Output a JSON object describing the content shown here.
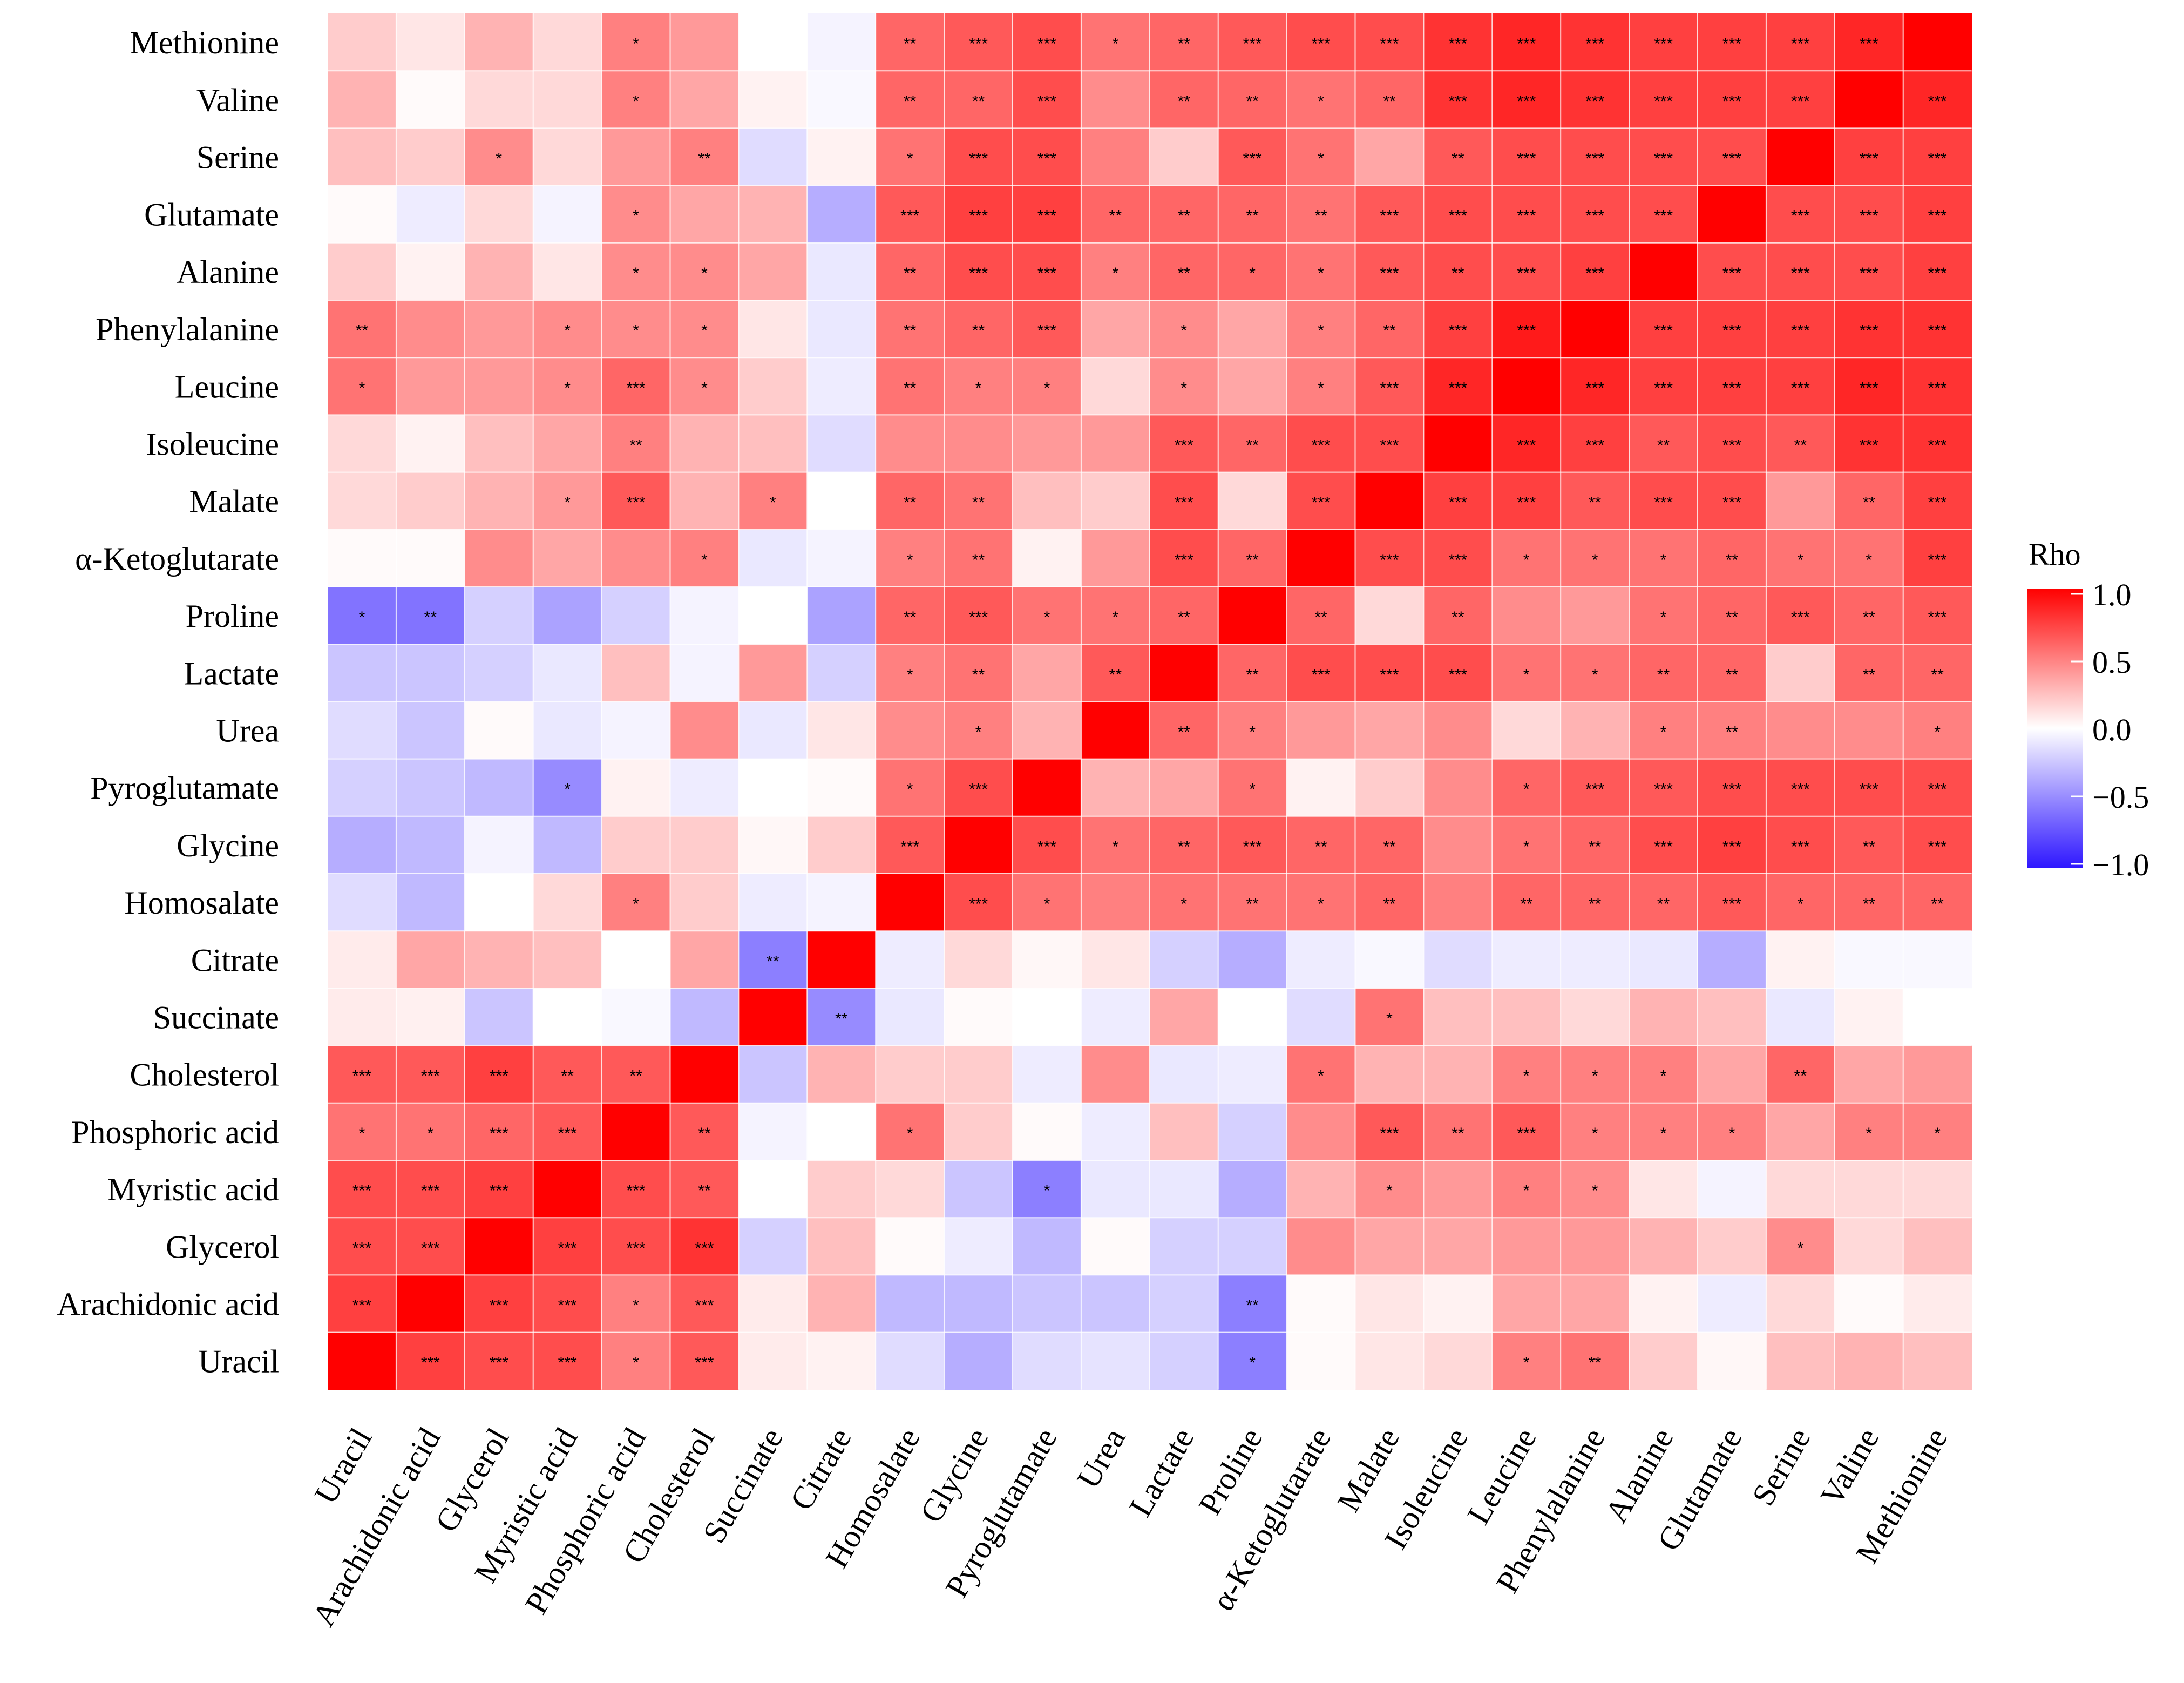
{
  "chart_data": {
    "type": "heatmap",
    "title": "",
    "xlabel": "",
    "ylabel": "",
    "columns": [
      "Uracil",
      "Arachidonic acid",
      "Glycerol",
      "Myristic acid",
      "Phosphoric acid",
      "Cholesterol",
      "Succinate",
      "Citrate",
      "Homosalate",
      "Glycine",
      "Pyroglutamate",
      "Urea",
      "Lactate",
      "Proline",
      "α-Ketoglutarate",
      "Malate",
      "Isoleucine",
      "Leucine",
      "Phenylalanine",
      "Alanine",
      "Glutamate",
      "Serine",
      "Valine",
      "Methionine"
    ],
    "rows": [
      "Methionine",
      "Valine",
      "Serine",
      "Glutamate",
      "Alanine",
      "Phenylalanine",
      "Leucine",
      "Isoleucine",
      "Malate",
      "α-Ketoglutarate",
      "Proline",
      "Lactate",
      "Urea",
      "Pyroglutamate",
      "Glycine",
      "Homosalate",
      "Citrate",
      "Succinate",
      "Cholesterol",
      "Phosphoric acid",
      "Myristic acid",
      "Glycerol",
      "Arachidonic acid",
      "Uracil"
    ],
    "values": [
      [
        0.2,
        0.1,
        0.3,
        0.15,
        0.5,
        0.4,
        0,
        -0.05,
        0.6,
        0.65,
        0.7,
        0.55,
        0.6,
        0.65,
        0.7,
        0.7,
        0.8,
        0.85,
        0.8,
        0.75,
        0.75,
        0.75,
        0.85,
        1.0
      ],
      [
        0.3,
        0.02,
        0.15,
        0.15,
        0.5,
        0.35,
        0.05,
        -0.03,
        0.6,
        0.6,
        0.7,
        0.45,
        0.6,
        0.6,
        0.55,
        0.6,
        0.8,
        0.85,
        0.8,
        0.75,
        0.75,
        0.75,
        1.0,
        0.85
      ],
      [
        0.25,
        0.2,
        0.45,
        0.15,
        0.4,
        0.5,
        -0.15,
        0.05,
        0.55,
        0.7,
        0.7,
        0.5,
        0.2,
        0.65,
        0.55,
        0.35,
        0.65,
        0.7,
        0.7,
        0.7,
        0.7,
        1.0,
        0.75,
        0.75
      ],
      [
        0.02,
        -0.08,
        0.15,
        -0.05,
        0.45,
        0.35,
        0.3,
        -0.35,
        0.65,
        0.75,
        0.75,
        0.6,
        0.6,
        0.6,
        0.55,
        0.65,
        0.7,
        0.7,
        0.7,
        0.7,
        1.0,
        0.7,
        0.7,
        0.75
      ],
      [
        0.2,
        0.05,
        0.3,
        0.1,
        0.45,
        0.45,
        0.35,
        -0.1,
        0.6,
        0.7,
        0.7,
        0.5,
        0.6,
        0.6,
        0.55,
        0.65,
        0.7,
        0.7,
        0.75,
        1.0,
        0.7,
        0.7,
        0.7,
        0.75
      ],
      [
        0.55,
        0.45,
        0.4,
        0.45,
        0.45,
        0.45,
        0.1,
        -0.1,
        0.55,
        0.6,
        0.65,
        0.35,
        0.45,
        0.35,
        0.5,
        0.6,
        0.75,
        0.9,
        1.0,
        0.75,
        0.75,
        0.75,
        0.8,
        0.8
      ],
      [
        0.55,
        0.4,
        0.4,
        0.45,
        0.6,
        0.45,
        0.2,
        -0.08,
        0.55,
        0.5,
        0.5,
        0.15,
        0.45,
        0.35,
        0.5,
        0.65,
        0.85,
        1.0,
        0.85,
        0.75,
        0.75,
        0.75,
        0.85,
        0.8
      ],
      [
        0.15,
        0.05,
        0.25,
        0.35,
        0.5,
        0.3,
        0.25,
        -0.15,
        0.45,
        0.45,
        0.4,
        0.4,
        0.65,
        0.6,
        0.7,
        0.7,
        1.0,
        0.85,
        0.75,
        0.65,
        0.7,
        0.65,
        0.8,
        0.8
      ],
      [
        0.15,
        0.2,
        0.3,
        0.4,
        0.65,
        0.3,
        0.5,
        0,
        0.6,
        0.55,
        0.25,
        0.2,
        0.7,
        0.15,
        0.7,
        1.0,
        0.75,
        0.75,
        0.65,
        0.7,
        0.7,
        0.4,
        0.6,
        0.75
      ],
      [
        0.02,
        0.02,
        0.45,
        0.35,
        0.45,
        0.5,
        -0.1,
        -0.05,
        0.5,
        0.55,
        0.05,
        0.4,
        0.7,
        0.6,
        1.0,
        0.7,
        0.7,
        0.55,
        0.55,
        0.55,
        0.6,
        0.55,
        0.55,
        0.75
      ],
      [
        -0.6,
        -0.6,
        -0.2,
        -0.4,
        -0.2,
        -0.05,
        0,
        -0.4,
        0.6,
        0.65,
        0.55,
        0.55,
        0.6,
        1.0,
        0.6,
        0.15,
        0.6,
        0.45,
        0.4,
        0.55,
        0.6,
        0.65,
        0.6,
        0.65
      ],
      [
        -0.25,
        -0.25,
        -0.2,
        -0.1,
        0.25,
        -0.05,
        0.4,
        -0.2,
        0.5,
        0.55,
        0.35,
        0.65,
        1.0,
        0.6,
        0.7,
        0.7,
        0.7,
        0.55,
        0.55,
        0.6,
        0.6,
        0.2,
        0.6,
        0.6
      ],
      [
        -0.15,
        -0.25,
        0.02,
        -0.1,
        -0.05,
        0.45,
        -0.1,
        0.1,
        0.45,
        0.5,
        0.3,
        1.0,
        0.6,
        0.5,
        0.4,
        0.35,
        0.45,
        0.15,
        0.3,
        0.5,
        0.5,
        0.45,
        0.45,
        0.5
      ],
      [
        -0.2,
        -0.25,
        -0.3,
        -0.5,
        0.05,
        -0.08,
        0,
        0.02,
        0.55,
        0.7,
        1.0,
        0.3,
        0.35,
        0.55,
        0.05,
        0.2,
        0.45,
        0.6,
        0.65,
        0.65,
        0.7,
        0.7,
        0.7,
        0.7
      ],
      [
        -0.35,
        -0.3,
        -0.05,
        -0.3,
        0.2,
        0.2,
        0.03,
        0.2,
        0.65,
        1.0,
        0.7,
        0.55,
        0.6,
        0.65,
        0.6,
        0.6,
        0.45,
        0.55,
        0.6,
        0.7,
        0.75,
        0.7,
        0.65,
        0.7
      ],
      [
        -0.15,
        -0.3,
        0,
        0.15,
        0.5,
        0.2,
        -0.08,
        -0.05,
        1.0,
        0.7,
        0.55,
        0.5,
        0.55,
        0.55,
        0.55,
        0.6,
        0.5,
        0.6,
        0.6,
        0.6,
        0.65,
        0.6,
        0.6,
        0.6
      ],
      [
        0.08,
        0.35,
        0.3,
        0.25,
        0,
        0.35,
        -0.55,
        1.0,
        -0.08,
        0.15,
        0.03,
        0.1,
        -0.2,
        -0.35,
        -0.08,
        -0.03,
        -0.15,
        -0.08,
        -0.08,
        -0.1,
        -0.35,
        0.05,
        -0.03,
        -0.03
      ],
      [
        0.08,
        0.06,
        -0.25,
        0,
        -0.03,
        -0.3,
        1.0,
        -0.5,
        -0.1,
        0.02,
        0,
        -0.08,
        0.35,
        0,
        -0.15,
        0.55,
        0.25,
        0.25,
        0.15,
        0.3,
        0.25,
        -0.1,
        0.05,
        0
      ],
      [
        0.65,
        0.65,
        0.75,
        0.65,
        0.65,
        1.0,
        -0.25,
        0.3,
        0.2,
        0.2,
        -0.08,
        0.45,
        -0.1,
        -0.08,
        0.55,
        0.3,
        0.3,
        0.5,
        0.5,
        0.5,
        0.35,
        0.6,
        0.35,
        0.4
      ],
      [
        0.55,
        0.55,
        0.6,
        0.65,
        1.0,
        0.65,
        -0.05,
        0,
        0.55,
        0.2,
        0.02,
        -0.08,
        0.25,
        -0.2,
        0.45,
        0.65,
        0.55,
        0.65,
        0.5,
        0.5,
        0.5,
        0.35,
        0.5,
        0.5
      ],
      [
        0.7,
        0.7,
        0.75,
        1.0,
        0.7,
        0.65,
        0,
        0.2,
        0.15,
        -0.25,
        -0.55,
        -0.1,
        -0.1,
        -0.35,
        0.3,
        0.45,
        0.4,
        0.5,
        0.45,
        0.1,
        -0.05,
        0.15,
        0.15,
        0.15
      ],
      [
        0.7,
        0.7,
        1.0,
        0.75,
        0.7,
        0.8,
        -0.2,
        0.25,
        0.02,
        -0.08,
        -0.3,
        0.02,
        -0.2,
        -0.2,
        0.45,
        0.35,
        0.35,
        0.4,
        0.4,
        0.3,
        0.2,
        0.45,
        0.15,
        0.25
      ],
      [
        0.75,
        1.0,
        0.75,
        0.7,
        0.5,
        0.65,
        0.08,
        0.3,
        -0.3,
        -0.3,
        -0.25,
        -0.25,
        -0.2,
        -0.55,
        0.02,
        0.1,
        0.05,
        0.35,
        0.35,
        0.05,
        -0.08,
        0.15,
        0.02,
        0.08
      ],
      [
        1.0,
        0.75,
        0.7,
        0.7,
        0.5,
        0.65,
        0.08,
        0.05,
        -0.15,
        -0.35,
        -0.15,
        -0.12,
        -0.2,
        -0.55,
        0.02,
        0.1,
        0.15,
        0.5,
        0.55,
        0.2,
        0.03,
        0.25,
        0.3,
        0.25
      ]
    ],
    "significance": [
      [
        "",
        "",
        "",
        "",
        "*",
        "",
        "",
        "",
        "**",
        "***",
        "***",
        "*",
        "**",
        "***",
        "***",
        "***",
        "***",
        "***",
        "***",
        "***",
        "***",
        "***",
        "***",
        ""
      ],
      [
        "",
        "",
        "",
        "",
        "*",
        "",
        "",
        "",
        "**",
        "**",
        "***",
        "",
        "**",
        "**",
        "*",
        "**",
        "***",
        "***",
        "***",
        "***",
        "***",
        "***",
        "",
        "***"
      ],
      [
        "",
        "",
        "*",
        "",
        "",
        "**",
        "",
        "",
        "*",
        "***",
        "***",
        "",
        "",
        "***",
        "*",
        "",
        "**",
        "***",
        "***",
        "***",
        "***",
        "",
        "***",
        "***"
      ],
      [
        "",
        "",
        "",
        "",
        "*",
        "",
        "",
        "",
        "***",
        "***",
        "***",
        "**",
        "**",
        "**",
        "**",
        "***",
        "***",
        "***",
        "***",
        "***",
        "",
        "***",
        "***",
        "***"
      ],
      [
        "",
        "",
        "",
        "",
        "*",
        "*",
        "",
        "",
        "**",
        "***",
        "***",
        "*",
        "**",
        "*",
        "*",
        "***",
        "**",
        "***",
        "***",
        "",
        "***",
        "***",
        "***",
        "***"
      ],
      [
        "**",
        "",
        "",
        "*",
        "*",
        "*",
        "",
        "",
        "**",
        "**",
        "***",
        "",
        "*",
        "",
        "*",
        "**",
        "***",
        "***",
        "",
        "***",
        "***",
        "***",
        "***",
        "***"
      ],
      [
        "*",
        "",
        "",
        "*",
        "***",
        "*",
        "",
        "",
        "**",
        "*",
        "*",
        "",
        "*",
        "",
        "*",
        "***",
        "***",
        "",
        "***",
        "***",
        "***",
        "***",
        "***",
        "***"
      ],
      [
        "",
        "",
        "",
        "",
        "**",
        "",
        "",
        "",
        "",
        "",
        "",
        "",
        "***",
        "**",
        "***",
        "***",
        "",
        "***",
        "***",
        "**",
        "***",
        "**",
        "***",
        "***"
      ],
      [
        "",
        "",
        "",
        "*",
        "***",
        "",
        "*",
        "",
        "**",
        "**",
        "",
        "",
        "***",
        "",
        "***",
        "",
        "***",
        "***",
        "**",
        "***",
        "***",
        "",
        "**",
        "***"
      ],
      [
        "",
        "",
        "",
        "",
        "",
        "*",
        "",
        "",
        "*",
        "**",
        "",
        "",
        "***",
        "**",
        "",
        "***",
        "***",
        "*",
        "*",
        "*",
        "**",
        "*",
        "*",
        "***"
      ],
      [
        "*",
        "**",
        "",
        "",
        "",
        "",
        "",
        "",
        "**",
        "***",
        "*",
        "*",
        "**",
        "",
        "**",
        "",
        "**",
        "",
        "",
        "*",
        "**",
        "***",
        "**",
        "***"
      ],
      [
        "",
        "",
        "",
        "",
        "",
        "",
        "",
        "",
        "*",
        "**",
        "",
        "**",
        "",
        "**",
        "***",
        "***",
        "***",
        "*",
        "*",
        "**",
        "**",
        "",
        "**",
        "**"
      ],
      [
        "",
        "",
        "",
        "",
        "",
        "",
        "",
        "",
        "",
        "*",
        "",
        "",
        "**",
        "*",
        "",
        "",
        "",
        "",
        "",
        "*",
        "**",
        "",
        "",
        "*"
      ],
      [
        "",
        "",
        "",
        "*",
        "",
        "",
        "",
        "",
        "*",
        "***",
        "",
        "",
        "",
        "*",
        "",
        "",
        "",
        "*",
        "***",
        "***",
        "***",
        "***",
        "***",
        "***"
      ],
      [
        "",
        "",
        "",
        "",
        "",
        "",
        "",
        "",
        "***",
        "",
        "***",
        "*",
        "**",
        "***",
        "**",
        "**",
        "",
        "*",
        "**",
        "***",
        "***",
        "***",
        "**",
        "***"
      ],
      [
        "",
        "",
        "",
        "",
        "*",
        "",
        "",
        "",
        "",
        "***",
        "*",
        "",
        "*",
        "**",
        "*",
        "**",
        "",
        "**",
        "**",
        "**",
        "***",
        "*",
        "**",
        "**"
      ],
      [
        "",
        "",
        "",
        "",
        "",
        "",
        "**",
        "",
        "",
        "",
        "",
        "",
        "",
        "",
        "",
        "",
        "",
        "",
        "",
        "",
        "",
        "",
        "",
        ""
      ],
      [
        "",
        "",
        "",
        "",
        "",
        "",
        "",
        "**",
        "",
        "",
        "",
        "",
        "",
        "",
        "",
        "*",
        "",
        "",
        "",
        "",
        "",
        "",
        "",
        ""
      ],
      [
        "***",
        "***",
        "***",
        "**",
        "**",
        "",
        "",
        "",
        "",
        "",
        "",
        "",
        "",
        "",
        "*",
        "",
        "",
        "*",
        "*",
        "*",
        "",
        "**",
        "",
        ""
      ],
      [
        "*",
        "*",
        "***",
        "***",
        "",
        "**",
        "",
        "",
        "*",
        "",
        "",
        "",
        "",
        "",
        "",
        "***",
        "**",
        "***",
        "*",
        "*",
        "*",
        "",
        "*",
        "*"
      ],
      [
        "***",
        "***",
        "***",
        "",
        "***",
        "**",
        "",
        "",
        "",
        "",
        "*",
        "",
        "",
        "",
        "",
        "*",
        "",
        "*",
        "*",
        "",
        "",
        "",
        "",
        ""
      ],
      [
        "***",
        "***",
        "",
        "***",
        "***",
        "***",
        "",
        "",
        "",
        "",
        "",
        "",
        "",
        "",
        "",
        "",
        "",
        "",
        "",
        "",
        "",
        "*",
        "",
        ""
      ],
      [
        "***",
        "",
        "***",
        "***",
        "*",
        "***",
        "",
        "",
        "",
        "",
        "",
        "",
        "",
        "**",
        "",
        "",
        "",
        "",
        "",
        "",
        "",
        "",
        "",
        ""
      ],
      [
        "",
        "***",
        "***",
        "***",
        "*",
        "***",
        "",
        "",
        "",
        "",
        "",
        "",
        "",
        "*",
        "",
        "",
        "",
        "*",
        "**",
        "",
        "",
        "",
        "",
        ""
      ]
    ],
    "legend": {
      "title": "Rho",
      "range": [
        -1.0,
        1.0
      ],
      "ticks": [
        "1.0",
        "0.5",
        "0.0",
        "−0.5",
        "−1.0"
      ],
      "tick_values": [
        1.0,
        0.5,
        0.0,
        -0.5,
        -1.0
      ],
      "colors": {
        "low": "#2e16ff",
        "mid": "#ffffff",
        "high": "#ff0000"
      },
      "placement": "right"
    }
  }
}
